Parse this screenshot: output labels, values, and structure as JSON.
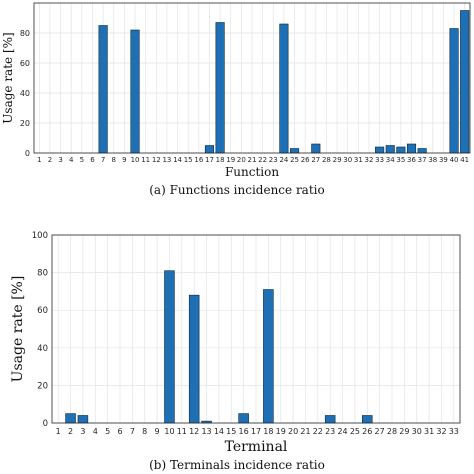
{
  "chart_data": [
    {
      "type": "bar",
      "ylabel": "Usage rate [%]",
      "xlabel": "Function",
      "caption": "(a) Functions incidence ratio",
      "ylim": [
        0,
        100
      ],
      "yticks": [
        0,
        20,
        40,
        60,
        80
      ],
      "grid": true,
      "color": "#1f6fb4",
      "categories": [
        "1",
        "2",
        "3",
        "4",
        "5",
        "6",
        "7",
        "8",
        "9",
        "10",
        "11",
        "12",
        "13",
        "14",
        "15",
        "16",
        "17",
        "18",
        "19",
        "20",
        "21",
        "22",
        "23",
        "24",
        "25",
        "26",
        "27",
        "28",
        "29",
        "30",
        "31",
        "32",
        "33",
        "34",
        "35",
        "36",
        "37",
        "38",
        "39",
        "40",
        "41"
      ],
      "values": [
        0,
        0,
        0,
        0,
        0,
        0,
        85,
        0,
        0,
        82,
        0,
        0,
        0,
        0,
        0,
        0,
        5,
        87,
        0,
        0,
        0,
        0,
        0,
        86,
        3,
        0,
        6,
        0,
        0,
        0,
        0,
        0,
        4,
        5,
        4,
        6,
        3,
        0,
        0,
        83,
        95
      ]
    },
    {
      "type": "bar",
      "ylabel": "Usage rate [%]",
      "xlabel": "Terminal",
      "caption": "(b) Terminals incidence ratio",
      "ylim": [
        0,
        100
      ],
      "yticks": [
        0,
        20,
        40,
        60,
        80,
        100
      ],
      "grid": true,
      "color": "#1f6fb4",
      "categories": [
        "1",
        "2",
        "3",
        "4",
        "5",
        "6",
        "7",
        "8",
        "9",
        "10",
        "11",
        "12",
        "13",
        "14",
        "15",
        "16",
        "17",
        "18",
        "19",
        "20",
        "21",
        "22",
        "23",
        "24",
        "25",
        "26",
        "27",
        "28",
        "29",
        "30",
        "31",
        "32",
        "33"
      ],
      "values": [
        0,
        5,
        4,
        0,
        0,
        0,
        0,
        0,
        0,
        81,
        0,
        68,
        1,
        0,
        0,
        5,
        0,
        71,
        0,
        0,
        0,
        0,
        4,
        0,
        0,
        4,
        0,
        0,
        0,
        0,
        0,
        0,
        0
      ]
    }
  ]
}
